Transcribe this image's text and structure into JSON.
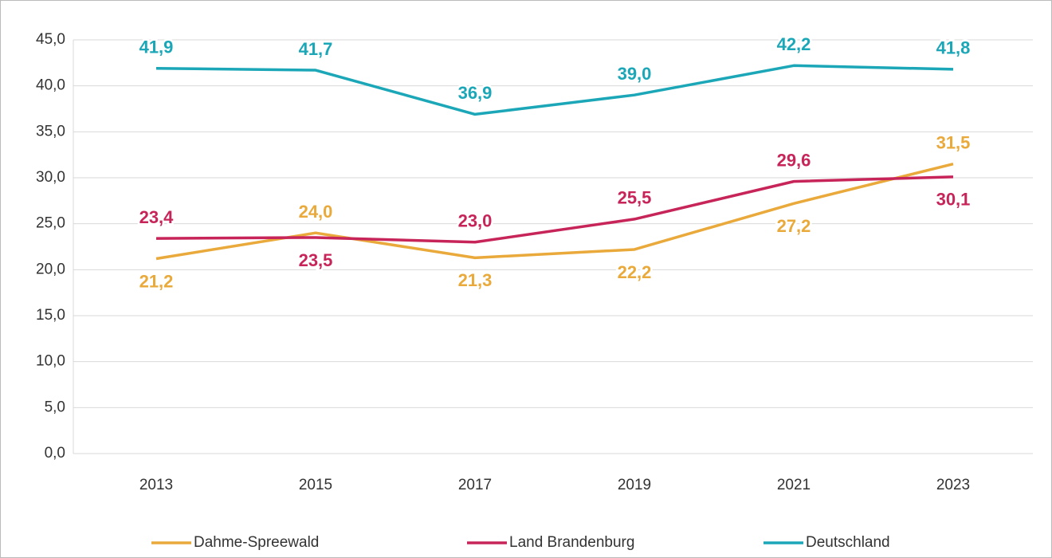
{
  "chart_data": {
    "type": "line",
    "categories": [
      "2013",
      "2015",
      "2017",
      "2019",
      "2021",
      "2023"
    ],
    "series": [
      {
        "name": "Dahme-Spreewald",
        "color": "#e9a93b",
        "values": [
          21.2,
          24.0,
          21.3,
          22.2,
          27.2,
          31.5
        ],
        "value_labels": [
          "21,2",
          "24,0",
          "21,3",
          "22,2",
          "27,2",
          "31,5"
        ]
      },
      {
        "name": "Land Brandenburg",
        "color": "#c72559",
        "values": [
          23.4,
          23.5,
          23.0,
          25.5,
          29.6,
          30.1
        ],
        "value_labels": [
          "23,4",
          "23,5",
          "23,0",
          "25,5",
          "29,6",
          "30,1"
        ]
      },
      {
        "name": "Deutschland",
        "color": "#1ba7b7",
        "values": [
          41.9,
          41.7,
          36.9,
          39.0,
          42.2,
          41.8
        ],
        "value_labels": [
          "41,9",
          "41,7",
          "36,9",
          "39,0",
          "42,2",
          "41,8"
        ]
      }
    ],
    "ylim": [
      0,
      45
    ],
    "yticks": [
      {
        "value": 0,
        "label": "0,0"
      },
      {
        "value": 5,
        "label": "5,0"
      },
      {
        "value": 10,
        "label": "10,0"
      },
      {
        "value": 15,
        "label": "15,0"
      },
      {
        "value": 20,
        "label": "20,0"
      },
      {
        "value": 25,
        "label": "25,0"
      },
      {
        "value": 30,
        "label": "30,0"
      },
      {
        "value": 35,
        "label": "35,0"
      },
      {
        "value": 40,
        "label": "40,0"
      },
      {
        "value": 45,
        "label": "45,0"
      }
    ],
    "grid": true,
    "legend": "bottom"
  }
}
